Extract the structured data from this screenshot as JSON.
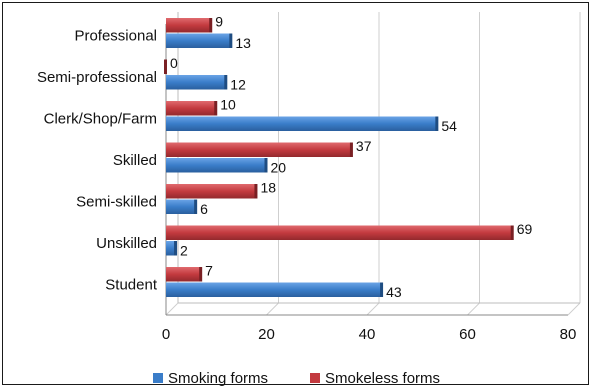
{
  "chart_data": {
    "type": "bar",
    "orientation": "horizontal",
    "categories": [
      "Professional",
      "Semi-professional",
      "Clerk/Shop/Farm",
      "Skilled",
      "Semi-skilled",
      "Unskilled",
      "Student"
    ],
    "series": [
      {
        "name": "Smoking forms",
        "color": "#3a7dc9",
        "values": [
          13,
          12,
          54,
          20,
          6,
          2,
          43
        ]
      },
      {
        "name": "Smokeless forms",
        "color": "#c33a3f",
        "values": [
          9,
          0,
          10,
          37,
          18,
          69,
          7
        ]
      }
    ],
    "x_ticks": [
      "0",
      "20",
      "40",
      "60",
      "80"
    ],
    "xlim": [
      0,
      80
    ],
    "grid": true,
    "legend_position": "bottom"
  }
}
